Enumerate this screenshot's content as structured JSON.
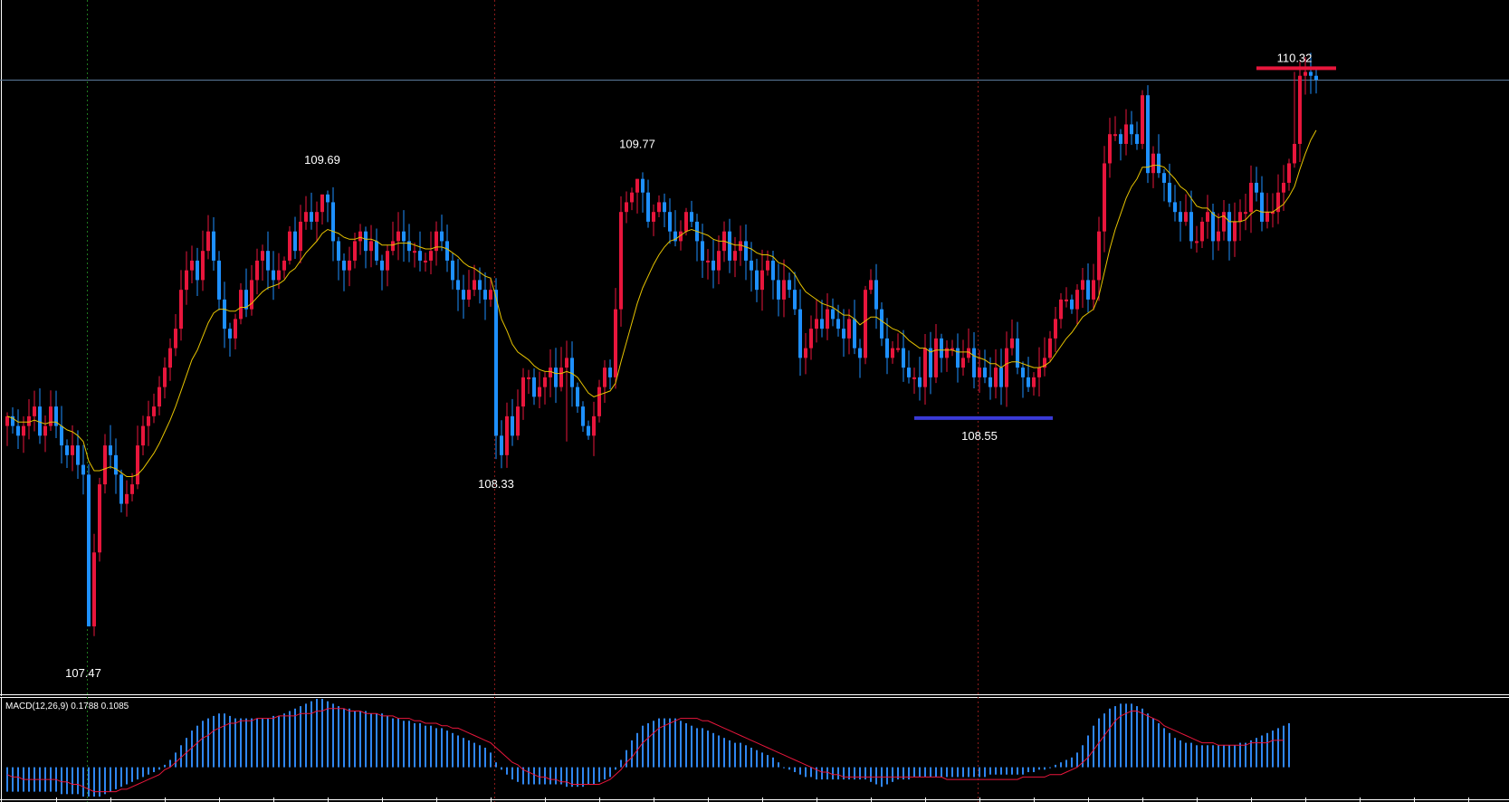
{
  "chart_data": {
    "type": "candlestick",
    "price_range": [
      107.2,
      110.55
    ],
    "current_price": 110.28,
    "colors": {
      "background": "#000000",
      "bull": "#e8163c",
      "bear": "#1e90ff",
      "ma": "#e6c300",
      "price_line": "#5b7a9a",
      "separator": "#8b1a1a",
      "macd_hist": "#2f86f2",
      "macd_signal": "#e8163c",
      "high_marker": "#e8163c",
      "low_marker": "#3a3ad6"
    },
    "annotations": [
      {
        "label": "107.47",
        "index": 14,
        "price": 107.47,
        "kind": "low"
      },
      {
        "label": "109.69",
        "index": 58,
        "price": 109.69,
        "kind": "high"
      },
      {
        "label": "108.33",
        "index": 90,
        "price": 108.33,
        "kind": "low"
      },
      {
        "label": "109.77",
        "index": 116,
        "price": 109.77,
        "kind": "high"
      },
      {
        "label": "108.55",
        "index": 179,
        "price": 108.55,
        "kind": "range-low"
      },
      {
        "label": "110.32",
        "index": 237,
        "price": 110.32,
        "kind": "range-high"
      }
    ],
    "candles": {
      "count": 239,
      "close": [
        108.55,
        108.5,
        108.45,
        108.5,
        108.55,
        108.6,
        108.45,
        108.5,
        108.6,
        108.5,
        108.4,
        108.35,
        108.4,
        108.3,
        108.25,
        107.47,
        107.85,
        108.2,
        108.4,
        108.35,
        108.25,
        108.1,
        108.15,
        108.2,
        108.4,
        108.5,
        108.55,
        108.6,
        108.7,
        108.8,
        108.9,
        109.0,
        109.2,
        109.3,
        109.35,
        109.25,
        109.4,
        109.5,
        109.35,
        109.15,
        109.0,
        108.95,
        109.05,
        109.2,
        109.1,
        109.25,
        109.35,
        109.4,
        109.3,
        109.25,
        109.3,
        109.35,
        109.5,
        109.4,
        109.55,
        109.6,
        109.55,
        109.6,
        109.69,
        109.65,
        109.45,
        109.35,
        109.3,
        109.35,
        109.45,
        109.5,
        109.4,
        109.45,
        109.35,
        109.3,
        109.4,
        109.45,
        109.5,
        109.45,
        109.4,
        109.4,
        109.35,
        109.35,
        109.4,
        109.5,
        109.45,
        109.35,
        109.25,
        109.2,
        109.15,
        109.2,
        109.25,
        109.2,
        109.15,
        109.2,
        108.45,
        108.35,
        108.55,
        108.45,
        108.6,
        108.75,
        108.75,
        108.65,
        108.7,
        108.75,
        108.8,
        108.7,
        108.8,
        108.85,
        108.7,
        108.6,
        108.5,
        108.45,
        108.55,
        108.7,
        108.8,
        108.75,
        109.1,
        109.6,
        109.65,
        109.7,
        109.77,
        109.7,
        109.55,
        109.6,
        109.65,
        109.6,
        109.5,
        109.45,
        109.5,
        109.6,
        109.55,
        109.45,
        109.35,
        109.35,
        109.3,
        109.4,
        109.5,
        109.35,
        109.4,
        109.45,
        109.35,
        109.3,
        109.2,
        109.3,
        109.35,
        109.25,
        109.15,
        109.25,
        109.2,
        109.1,
        108.85,
        108.9,
        109.0,
        109.05,
        109.0,
        109.1,
        109.05,
        109.0,
        108.95,
        109.05,
        108.9,
        108.85,
        109.2,
        109.25,
        109.1,
        108.95,
        108.85,
        108.9,
        108.9,
        108.8,
        108.75,
        108.75,
        108.7,
        108.9,
        108.75,
        108.95,
        108.85,
        108.9,
        108.9,
        108.8,
        108.85,
        108.9,
        108.75,
        108.8,
        108.75,
        108.7,
        108.8,
        108.7,
        108.9,
        108.95,
        108.8,
        108.75,
        108.7,
        108.75,
        108.8,
        108.85,
        108.95,
        109.05,
        109.15,
        109.15,
        109.1,
        109.2,
        109.25,
        109.15,
        109.25,
        109.5,
        109.85,
        110.0,
        110.0,
        109.95,
        110.05,
        110.0,
        109.95,
        110.2,
        109.8,
        109.9,
        109.8,
        109.75,
        109.65,
        109.6,
        109.55,
        109.6,
        109.45,
        109.45,
        109.55,
        109.6,
        109.45,
        109.5,
        109.6,
        109.45,
        109.55,
        109.6,
        109.6,
        109.75,
        109.7,
        109.55,
        109.6,
        109.6,
        109.7,
        109.75,
        109.85,
        109.95,
        110.3,
        110.32,
        110.3,
        110.28
      ],
      "ma": [
        108.55,
        108.54,
        108.52,
        108.52,
        108.52,
        108.53,
        108.52,
        108.51,
        108.52,
        108.52,
        108.5,
        108.48,
        108.47,
        108.45,
        108.42,
        108.32,
        108.27,
        108.27,
        108.28,
        108.29,
        108.28,
        108.26,
        108.24,
        108.24,
        108.25,
        108.28,
        108.32,
        108.36,
        108.41,
        108.47,
        108.53,
        108.6,
        108.68,
        108.76,
        108.84,
        108.89,
        108.96,
        109.03,
        109.08,
        109.1,
        109.1,
        109.09,
        109.09,
        109.11,
        109.11,
        109.13,
        109.16,
        109.19,
        109.21,
        109.22,
        109.23,
        109.25,
        109.29,
        109.31,
        109.35,
        109.39,
        109.42,
        109.45,
        109.49,
        109.51,
        109.5,
        109.49,
        109.47,
        109.46,
        109.46,
        109.47,
        109.46,
        109.46,
        109.45,
        109.43,
        109.43,
        109.43,
        109.44,
        109.44,
        109.44,
        109.43,
        109.42,
        109.41,
        109.41,
        109.42,
        109.42,
        109.41,
        109.39,
        109.37,
        109.34,
        109.32,
        109.31,
        109.29,
        109.27,
        109.26,
        109.16,
        109.05,
        108.99,
        108.92,
        108.88,
        108.86,
        108.84,
        108.81,
        108.79,
        108.78,
        108.78,
        108.77,
        108.77,
        108.78,
        108.77,
        108.75,
        108.71,
        108.67,
        108.65,
        108.66,
        108.67,
        108.68,
        108.72,
        108.83,
        108.93,
        109.03,
        109.13,
        109.21,
        109.27,
        109.33,
        109.38,
        109.42,
        109.45,
        109.46,
        109.48,
        109.5,
        109.51,
        109.5,
        109.49,
        109.48,
        109.46,
        109.45,
        109.45,
        109.44,
        109.43,
        109.43,
        109.42,
        109.41,
        109.39,
        109.38,
        109.38,
        109.37,
        109.34,
        109.33,
        109.31,
        109.28,
        109.23,
        109.19,
        109.17,
        109.15,
        109.13,
        109.12,
        109.11,
        109.09,
        109.07,
        109.07,
        109.05,
        109.02,
        109.04,
        109.06,
        109.06,
        109.04,
        109.02,
        109.0,
        108.99,
        108.97,
        108.94,
        108.92,
        108.9,
        108.9,
        108.88,
        108.89,
        108.89,
        108.89,
        108.89,
        108.88,
        108.88,
        108.88,
        108.86,
        108.85,
        108.84,
        108.82,
        108.82,
        108.8,
        108.82,
        108.83,
        108.83,
        108.82,
        108.81,
        108.8,
        108.8,
        108.81,
        108.83,
        108.87,
        108.91,
        108.95,
        108.98,
        109.02,
        109.06,
        109.08,
        109.1,
        109.17,
        109.29,
        109.41,
        109.51,
        109.59,
        109.67,
        109.73,
        109.77,
        109.83,
        109.83,
        109.84,
        109.84,
        109.83,
        109.8,
        109.77,
        109.73,
        109.71,
        109.67,
        109.63,
        109.62,
        109.62,
        109.59,
        109.57,
        109.58,
        109.55,
        109.55,
        109.55,
        109.56,
        109.59,
        109.61,
        109.6,
        109.6,
        109.6,
        109.62,
        109.64,
        109.68,
        109.73,
        109.82,
        109.9,
        109.97,
        110.02
      ]
    },
    "macd": {
      "label": "MACD(12,26,9) 0.1788 0.1085",
      "main": 0.1788,
      "signal_value": 0.1085,
      "range": [
        -0.12,
        0.28
      ],
      "signal": [
        -0.03,
        -0.04,
        -0.04,
        -0.05,
        -0.05,
        -0.05,
        -0.05,
        -0.05,
        -0.05,
        -0.05,
        -0.06,
        -0.06,
        -0.07,
        -0.07,
        -0.08,
        -0.09,
        -0.1,
        -0.1,
        -0.1,
        -0.1,
        -0.1,
        -0.09,
        -0.09,
        -0.08,
        -0.07,
        -0.06,
        -0.05,
        -0.04,
        -0.03,
        -0.01,
        0.0,
        0.02,
        0.04,
        0.06,
        0.08,
        0.1,
        0.12,
        0.13,
        0.15,
        0.16,
        0.17,
        0.18,
        0.18,
        0.19,
        0.19,
        0.19,
        0.2,
        0.2,
        0.2,
        0.2,
        0.21,
        0.21,
        0.21,
        0.21,
        0.22,
        0.22,
        0.22,
        0.23,
        0.23,
        0.24,
        0.24,
        0.24,
        0.24,
        0.23,
        0.23,
        0.23,
        0.22,
        0.22,
        0.22,
        0.21,
        0.21,
        0.21,
        0.2,
        0.2,
        0.2,
        0.19,
        0.19,
        0.18,
        0.18,
        0.18,
        0.17,
        0.17,
        0.16,
        0.16,
        0.15,
        0.14,
        0.13,
        0.12,
        0.11,
        0.1,
        0.08,
        0.06,
        0.04,
        0.02,
        0.01,
        -0.01,
        -0.02,
        -0.03,
        -0.04,
        -0.04,
        -0.05,
        -0.05,
        -0.06,
        -0.06,
        -0.07,
        -0.07,
        -0.07,
        -0.07,
        -0.07,
        -0.07,
        -0.06,
        -0.05,
        -0.03,
        -0.01,
        0.02,
        0.04,
        0.07,
        0.1,
        0.12,
        0.14,
        0.16,
        0.17,
        0.18,
        0.19,
        0.2,
        0.2,
        0.2,
        0.2,
        0.19,
        0.19,
        0.18,
        0.17,
        0.16,
        0.15,
        0.14,
        0.13,
        0.12,
        0.11,
        0.1,
        0.09,
        0.08,
        0.07,
        0.06,
        0.05,
        0.04,
        0.03,
        0.02,
        0.01,
        0.0,
        -0.01,
        -0.02,
        -0.02,
        -0.03,
        -0.03,
        -0.04,
        -0.04,
        -0.04,
        -0.04,
        -0.04,
        -0.04,
        -0.04,
        -0.04,
        -0.04,
        -0.04,
        -0.04,
        -0.04,
        -0.04,
        -0.04,
        -0.04,
        -0.04,
        -0.04,
        -0.04,
        -0.04,
        -0.05,
        -0.05,
        -0.05,
        -0.05,
        -0.05,
        -0.05,
        -0.05,
        -0.05,
        -0.05,
        -0.05,
        -0.05,
        -0.05,
        -0.05,
        -0.05,
        -0.04,
        -0.04,
        -0.04,
        -0.04,
        -0.04,
        -0.03,
        -0.03,
        -0.03,
        -0.02,
        -0.01,
        0.0,
        0.02,
        0.04,
        0.07,
        0.1,
        0.13,
        0.16,
        0.19,
        0.21,
        0.22,
        0.23,
        0.23,
        0.22,
        0.21,
        0.2,
        0.19,
        0.17,
        0.16,
        0.15,
        0.14,
        0.13,
        0.12,
        0.11,
        0.1,
        0.1,
        0.1,
        0.09,
        0.09,
        0.09,
        0.09,
        0.09,
        0.09,
        0.1,
        0.1,
        0.1,
        0.1,
        0.11,
        0.11,
        0.11
      ],
      "hist": [
        -0.1,
        -0.1,
        -0.1,
        -0.1,
        -0.1,
        -0.1,
        -0.1,
        -0.1,
        -0.1,
        -0.1,
        -0.11,
        -0.11,
        -0.11,
        -0.11,
        -0.12,
        -0.12,
        -0.12,
        -0.12,
        -0.11,
        -0.1,
        -0.09,
        -0.08,
        -0.07,
        -0.06,
        -0.05,
        -0.04,
        -0.03,
        -0.02,
        -0.01,
        0.01,
        0.03,
        0.06,
        0.09,
        0.12,
        0.15,
        0.17,
        0.19,
        0.2,
        0.21,
        0.22,
        0.22,
        0.21,
        0.2,
        0.2,
        0.2,
        0.2,
        0.2,
        0.2,
        0.2,
        0.21,
        0.21,
        0.22,
        0.23,
        0.24,
        0.25,
        0.26,
        0.27,
        0.28,
        0.28,
        0.27,
        0.26,
        0.25,
        0.24,
        0.24,
        0.23,
        0.23,
        0.23,
        0.22,
        0.22,
        0.22,
        0.21,
        0.2,
        0.2,
        0.19,
        0.19,
        0.18,
        0.18,
        0.17,
        0.17,
        0.16,
        0.16,
        0.15,
        0.14,
        0.13,
        0.12,
        0.11,
        0.1,
        0.09,
        0.08,
        0.06,
        0.02,
        -0.01,
        -0.03,
        -0.05,
        -0.06,
        -0.07,
        -0.07,
        -0.07,
        -0.07,
        -0.07,
        -0.07,
        -0.07,
        -0.07,
        -0.08,
        -0.08,
        -0.08,
        -0.08,
        -0.07,
        -0.07,
        -0.06,
        -0.05,
        -0.04,
        -0.01,
        0.03,
        0.07,
        0.11,
        0.14,
        0.17,
        0.18,
        0.19,
        0.2,
        0.2,
        0.2,
        0.2,
        0.19,
        0.18,
        0.17,
        0.16,
        0.16,
        0.15,
        0.14,
        0.13,
        0.12,
        0.11,
        0.1,
        0.1,
        0.09,
        0.08,
        0.07,
        0.06,
        0.05,
        0.04,
        0.02,
        0.0,
        -0.01,
        -0.02,
        -0.03,
        -0.04,
        -0.04,
        -0.05,
        -0.05,
        -0.05,
        -0.05,
        -0.05,
        -0.05,
        -0.05,
        -0.05,
        -0.05,
        -0.05,
        -0.06,
        -0.07,
        -0.08,
        -0.07,
        -0.06,
        -0.05,
        -0.05,
        -0.05,
        -0.04,
        -0.04,
        -0.04,
        -0.04,
        -0.04,
        -0.04,
        -0.04,
        -0.04,
        -0.04,
        -0.04,
        -0.04,
        -0.04,
        -0.04,
        -0.04,
        -0.03,
        -0.03,
        -0.03,
        -0.03,
        -0.03,
        -0.03,
        -0.03,
        -0.02,
        -0.02,
        -0.01,
        -0.01,
        0.0,
        0.01,
        0.02,
        0.03,
        0.04,
        0.06,
        0.09,
        0.13,
        0.17,
        0.2,
        0.22,
        0.24,
        0.25,
        0.26,
        0.26,
        0.26,
        0.25,
        0.24,
        0.22,
        0.2,
        0.18,
        0.16,
        0.14,
        0.12,
        0.11,
        0.1,
        0.1,
        0.09,
        0.09,
        0.09,
        0.09,
        0.09,
        0.09,
        0.09,
        0.09,
        0.1,
        0.1,
        0.11,
        0.12,
        0.13,
        0.14,
        0.15,
        0.16,
        0.17,
        0.18
      ]
    }
  }
}
